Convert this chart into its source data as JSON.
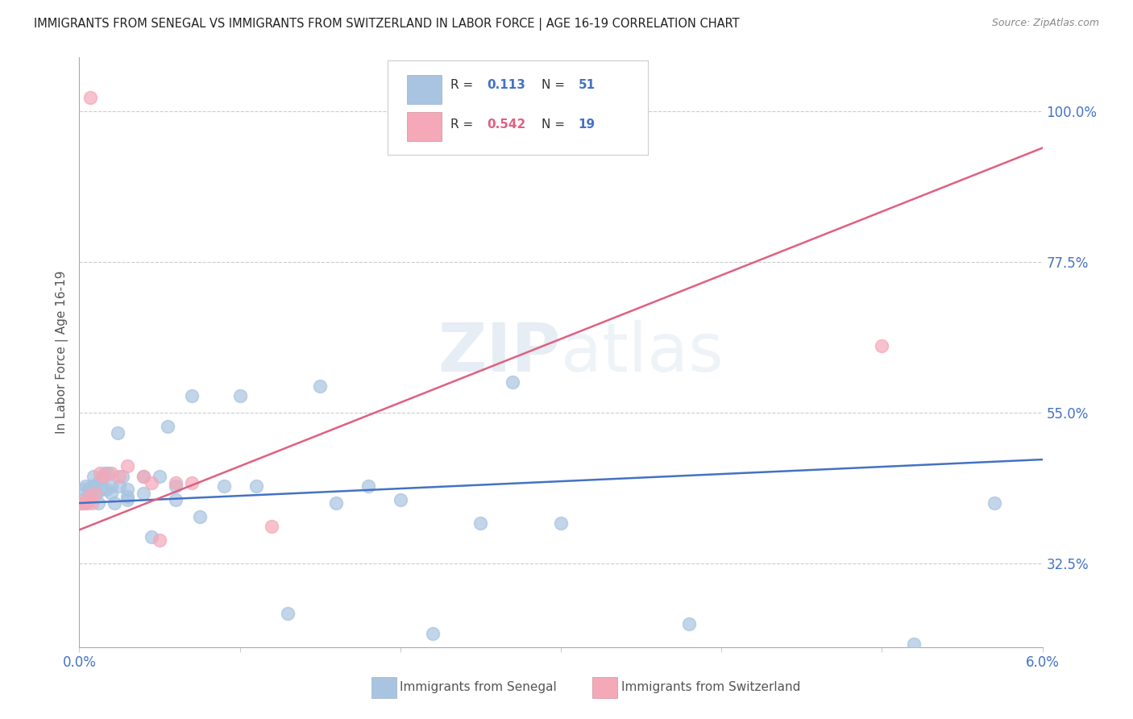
{
  "title": "IMMIGRANTS FROM SENEGAL VS IMMIGRANTS FROM SWITZERLAND IN LABOR FORCE | AGE 16-19 CORRELATION CHART",
  "source": "Source: ZipAtlas.com",
  "ylabel": "In Labor Force | Age 16-19",
  "xlim": [
    0.0,
    0.06
  ],
  "ylim": [
    0.2,
    1.08
  ],
  "ytick_vals": [
    0.325,
    0.55,
    0.775,
    1.0
  ],
  "ytick_labels": [
    "32.5%",
    "55.0%",
    "77.5%",
    "100.0%"
  ],
  "xtick_vals": [
    0.0,
    0.01,
    0.02,
    0.03,
    0.04,
    0.05,
    0.06
  ],
  "xtick_labels": [
    "0.0%",
    "",
    "",
    "",
    "",
    "",
    "6.0%"
  ],
  "blue_color": "#a8c4e0",
  "pink_color": "#f4a8b8",
  "blue_line_color": "#4472c4",
  "pink_line_color": "#e06080",
  "legend_R1": "0.113",
  "legend_N1": "51",
  "legend_R2": "0.542",
  "legend_N2": "19",
  "watermark": "ZIPatlas",
  "senegal_x": [
    0.0001,
    0.0002,
    0.0003,
    0.0004,
    0.0005,
    0.0006,
    0.0007,
    0.0008,
    0.0009,
    0.001,
    0.0011,
    0.0012,
    0.0013,
    0.0014,
    0.0015,
    0.0016,
    0.0017,
    0.0018,
    0.002,
    0.002,
    0.0022,
    0.0024,
    0.0025,
    0.0027,
    0.003,
    0.003,
    0.003,
    0.004,
    0.004,
    0.0045,
    0.005,
    0.0055,
    0.006,
    0.006,
    0.007,
    0.0075,
    0.009,
    0.01,
    0.011,
    0.013,
    0.015,
    0.016,
    0.018,
    0.02,
    0.022,
    0.025,
    0.027,
    0.03,
    0.038,
    0.052,
    0.057
  ],
  "senegal_y": [
    0.42,
    0.415,
    0.435,
    0.44,
    0.415,
    0.435,
    0.43,
    0.44,
    0.455,
    0.44,
    0.43,
    0.415,
    0.45,
    0.435,
    0.455,
    0.46,
    0.435,
    0.46,
    0.43,
    0.44,
    0.415,
    0.52,
    0.44,
    0.455,
    0.435,
    0.42,
    0.425,
    0.455,
    0.43,
    0.365,
    0.455,
    0.53,
    0.42,
    0.44,
    0.575,
    0.395,
    0.44,
    0.575,
    0.44,
    0.25,
    0.59,
    0.415,
    0.44,
    0.42,
    0.22,
    0.385,
    0.595,
    0.385,
    0.235,
    0.205,
    0.415
  ],
  "switzerland_x": [
    0.0001,
    0.0002,
    0.0004,
    0.0006,
    0.0008,
    0.001,
    0.0013,
    0.0015,
    0.002,
    0.0025,
    0.003,
    0.004,
    0.0045,
    0.005,
    0.006,
    0.007,
    0.012,
    0.05,
    0.0007
  ],
  "switzerland_y": [
    0.415,
    0.415,
    0.415,
    0.425,
    0.415,
    0.43,
    0.46,
    0.455,
    0.46,
    0.455,
    0.47,
    0.455,
    0.445,
    0.36,
    0.445,
    0.445,
    0.38,
    0.65,
    1.02
  ],
  "figsize": [
    14.06,
    8.92
  ],
  "dpi": 100
}
